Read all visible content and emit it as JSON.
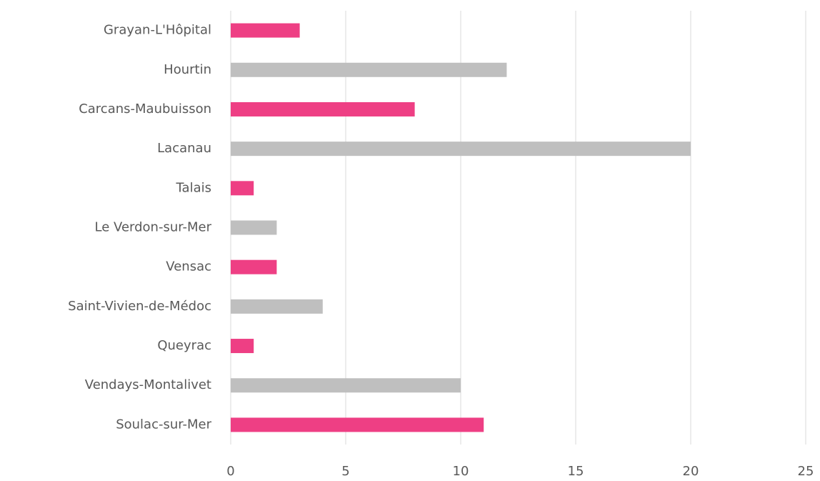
{
  "chart_data": {
    "type": "barh",
    "categories": [
      "Grayan-L'Hôpital",
      "Hourtin",
      "Carcans-Maubuisson",
      "Lacanau",
      "Talais",
      "Le Verdon-sur-Mer",
      "Vensac",
      "Saint-Vivien-de-Médoc",
      "Queyrac",
      "Vendays-Montalivet",
      "Soulac-sur-Mer"
    ],
    "values": [
      3,
      12,
      8,
      20,
      1,
      2,
      2,
      4,
      1,
      10,
      11
    ],
    "colors": [
      "#ee3f84",
      "#bfbfbf",
      "#ee3f84",
      "#bfbfbf",
      "#ee3f84",
      "#bfbfbf",
      "#ee3f84",
      "#bfbfbf",
      "#ee3f84",
      "#bfbfbf",
      "#ee3f84"
    ],
    "xlim": [
      0,
      25
    ],
    "xticks": [
      0,
      5,
      10,
      15,
      20,
      25
    ],
    "grid": true
  }
}
